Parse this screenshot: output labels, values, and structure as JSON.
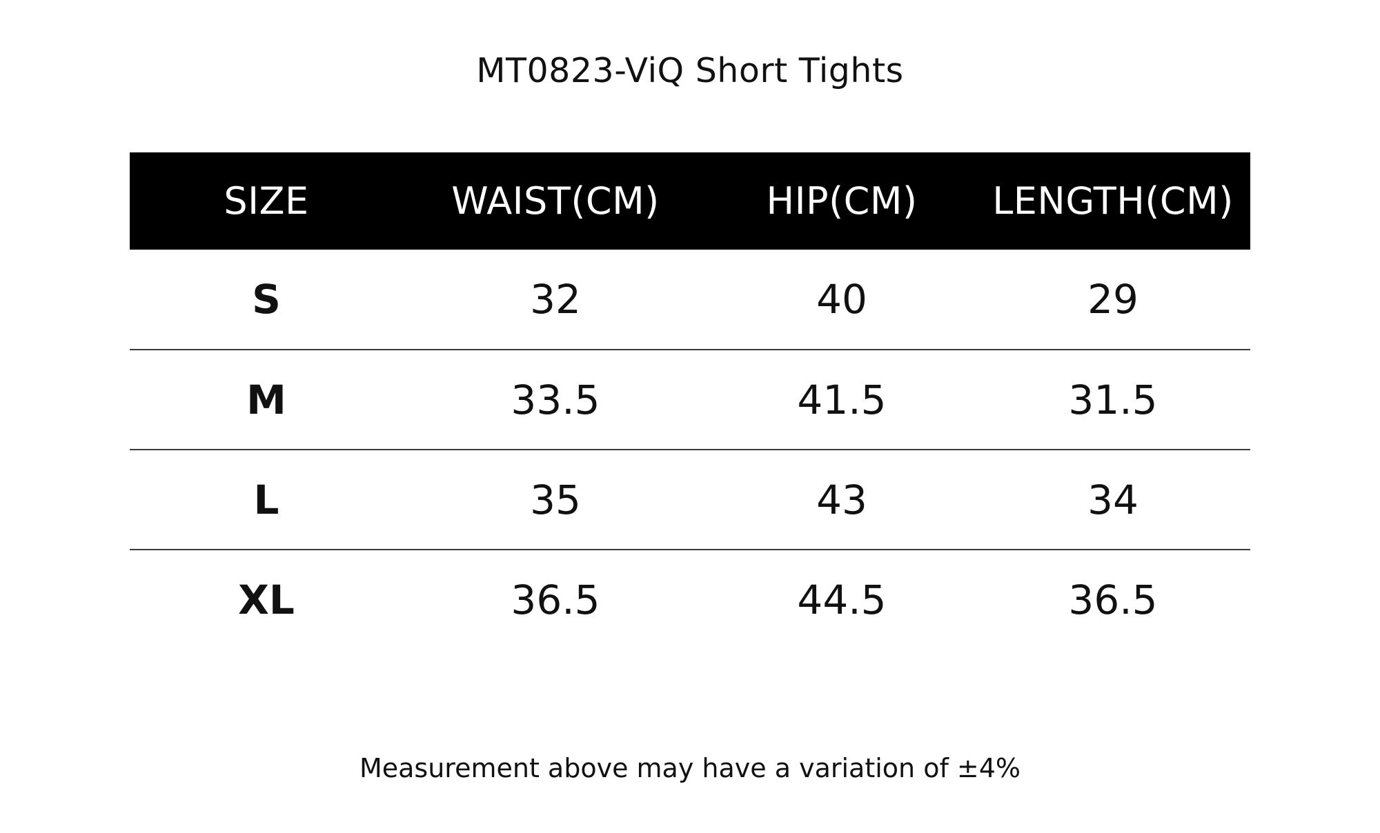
{
  "title": "MT0823-ViQ Short Tights",
  "table": {
    "headers": [
      "SIZE",
      "WAIST(CM)",
      "HIP(CM)",
      "LENGTH(CM)"
    ],
    "rows": [
      [
        "S",
        "32",
        "40",
        "29"
      ],
      [
        "M",
        "33.5",
        "41.5",
        "31.5"
      ],
      [
        "L",
        "35",
        "43",
        "34"
      ],
      [
        "XL",
        "36.5",
        "44.5",
        "36.5"
      ]
    ]
  },
  "footnote": "Measurement above may have a variation of ±4%",
  "colors": {
    "header_background": "#000000",
    "header_text": "#ffffff",
    "body_text": "#111111",
    "row_divider": "#3a3a3a",
    "page_background": "#ffffff"
  }
}
